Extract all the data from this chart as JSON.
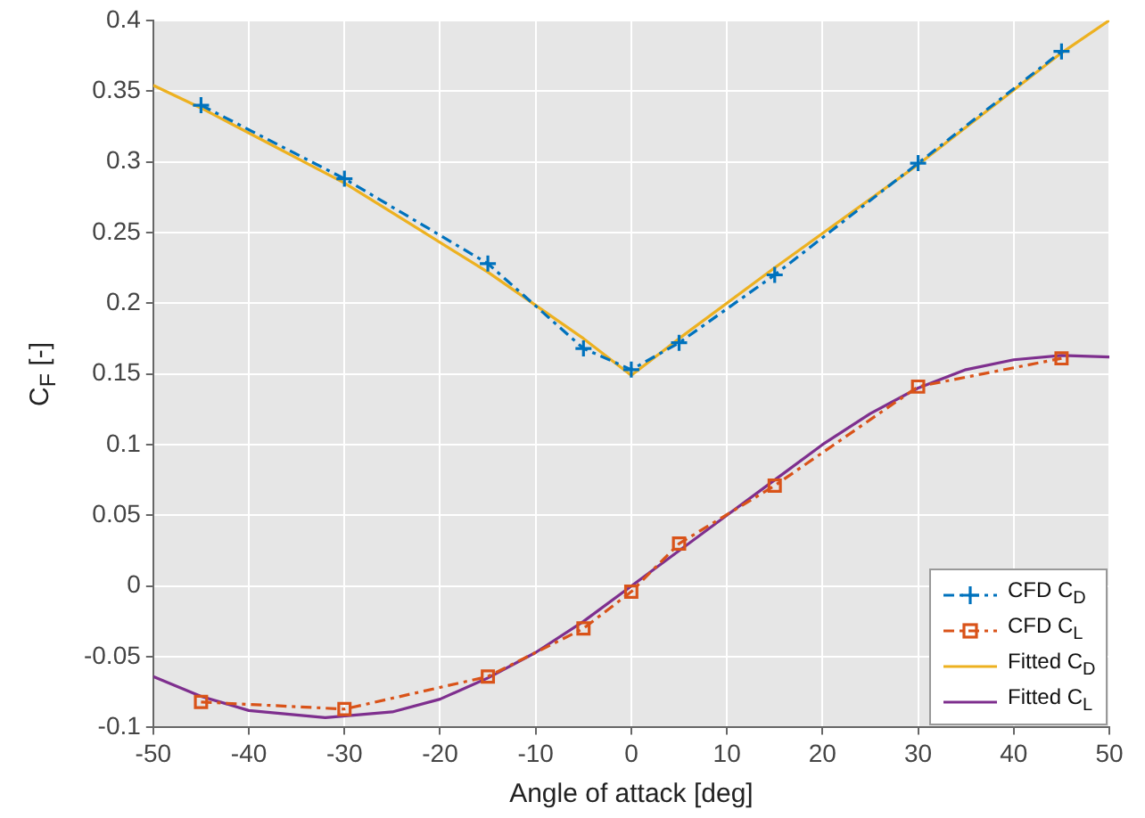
{
  "chart_data": {
    "type": "line",
    "xlabel": "Angle of attack [deg]",
    "ylabel": "C$_{F}$ [-]",
    "xlim": [
      -50,
      50
    ],
    "xticks": [
      -50,
      -40,
      -30,
      -20,
      -10,
      0,
      10,
      20,
      30,
      40,
      50
    ],
    "ylim": [
      -0.1,
      0.4
    ],
    "yticks": [
      -0.1,
      -0.05,
      0,
      0.05,
      0.1,
      0.15,
      0.2,
      0.25,
      0.3,
      0.35,
      0.4
    ],
    "grid": true,
    "legend": "bottom right",
    "series": [
      {
        "name": "CFD C$_{D}$",
        "color": "#0072bd",
        "marker": "cross",
        "line_style": "dashed",
        "x": [
          -45,
          -30,
          -15,
          -5,
          0,
          5,
          15,
          30,
          45
        ],
        "values": [
          0.34,
          0.288,
          0.228,
          0.168,
          0.153,
          0.172,
          0.22,
          0.299,
          0.378
        ]
      },
      {
        "name": "CFD C$_{L}$",
        "color": "#d95319",
        "marker": "square",
        "line_style": "dashed",
        "x": [
          -45,
          -30,
          -15,
          -5,
          0,
          5,
          15,
          30,
          45
        ],
        "values": [
          -0.082,
          -0.087,
          -0.064,
          -0.03,
          -0.004,
          0.03,
          0.071,
          0.141,
          0.161
        ]
      },
      {
        "name": "Fitted C$_{D}$",
        "color": "#edb120",
        "marker": "none",
        "line_style": "solid",
        "x": [
          -50,
          -45,
          -30,
          -15,
          -5,
          0,
          5,
          15,
          30,
          45,
          50
        ],
        "values": [
          0.354,
          0.338,
          0.285,
          0.222,
          0.175,
          0.149,
          0.175,
          0.225,
          0.298,
          0.377,
          0.4
        ]
      },
      {
        "name": "Fitted C$_{L}$",
        "color": "#7e2f8e",
        "marker": "none",
        "line_style": "solid",
        "x": [
          -50,
          -45,
          -40,
          -32,
          -25,
          -20,
          -15,
          -10,
          -5,
          0,
          5,
          10,
          15,
          20,
          25,
          30,
          35,
          40,
          45,
          50
        ],
        "values": [
          -0.064,
          -0.078,
          -0.088,
          -0.093,
          -0.089,
          -0.08,
          -0.065,
          -0.047,
          -0.025,
          0,
          0.025,
          0.05,
          0.075,
          0.1,
          0.122,
          0.14,
          0.153,
          0.16,
          0.163,
          0.162
        ]
      }
    ]
  }
}
